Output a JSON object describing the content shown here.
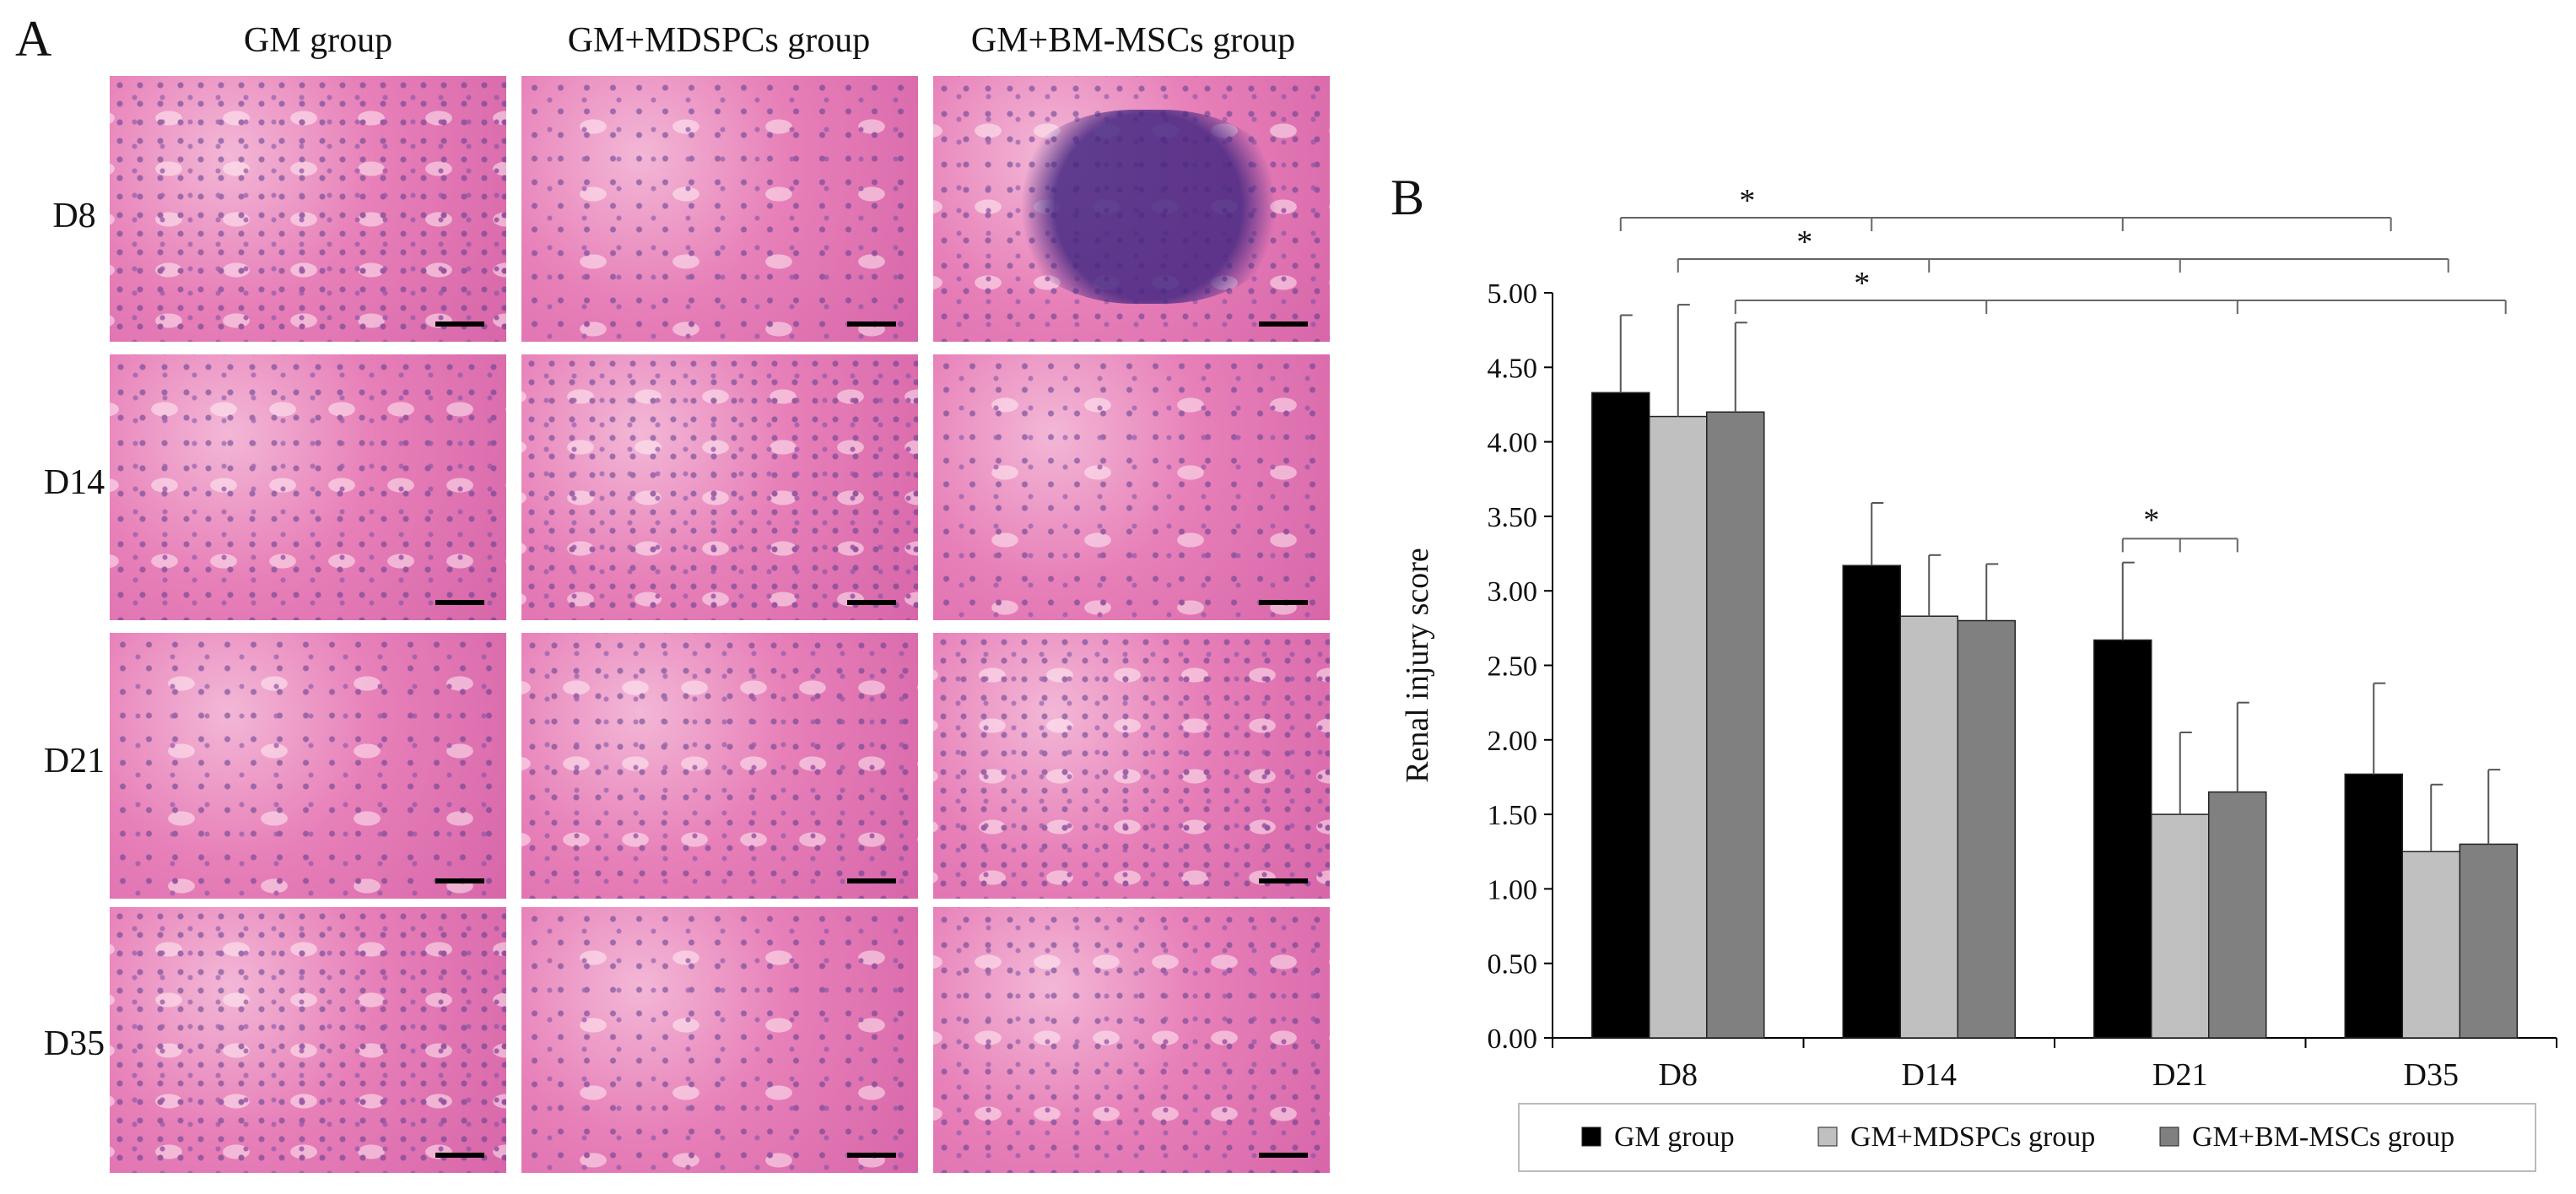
{
  "panel_a": {
    "letter": "A",
    "columns": [
      "GM group",
      "GM+MDSPCs group",
      "GM+BM-MSCs group"
    ],
    "rows": [
      "D8",
      "D14",
      "D21",
      "D35"
    ]
  },
  "panel_b_letter": "B",
  "chart_data": {
    "type": "bar",
    "title": "",
    "xlabel": "",
    "ylabel": "Renal injury score",
    "ylim": [
      0,
      5
    ],
    "yticks": [
      "0.00",
      "0.50",
      "1.00",
      "1.50",
      "2.00",
      "2.50",
      "3.00",
      "3.50",
      "4.00",
      "4.50",
      "5.00"
    ],
    "categories": [
      "D8",
      "D14",
      "D21",
      "D35"
    ],
    "series": [
      {
        "name": "GM group",
        "color": "#000000",
        "values": [
          4.33,
          3.17,
          2.67,
          1.77
        ],
        "errors": [
          0.52,
          0.42,
          0.52,
          0.61
        ]
      },
      {
        "name": "GM+MDSPCs group",
        "color": "#c0c0c0",
        "values": [
          4.17,
          2.83,
          1.5,
          1.25
        ],
        "errors": [
          0.75,
          0.41,
          0.55,
          0.45
        ]
      },
      {
        "name": "GM+BM-MSCs group",
        "color": "#808080",
        "values": [
          4.2,
          2.8,
          1.65,
          1.3
        ],
        "errors": [
          0.6,
          0.38,
          0.6,
          0.5
        ]
      }
    ],
    "legend_position": "bottom",
    "grid": false,
    "annotations": [
      {
        "label": "*",
        "from": "D8 GM group",
        "to": [
          "D14",
          "D21",
          "D35"
        ]
      },
      {
        "label": "*",
        "from": "D8 GM+MDSPCs group",
        "to": [
          "D14",
          "D21",
          "D35"
        ]
      },
      {
        "label": "*",
        "from": "D8 GM+BM-MSCs group",
        "to": [
          "D14",
          "D21",
          "D35"
        ]
      },
      {
        "label": "*",
        "from": "D21 GM group",
        "to": [
          "D21 GM+MDSPCs group",
          "D21 GM+BM-MSCs group"
        ]
      }
    ]
  }
}
